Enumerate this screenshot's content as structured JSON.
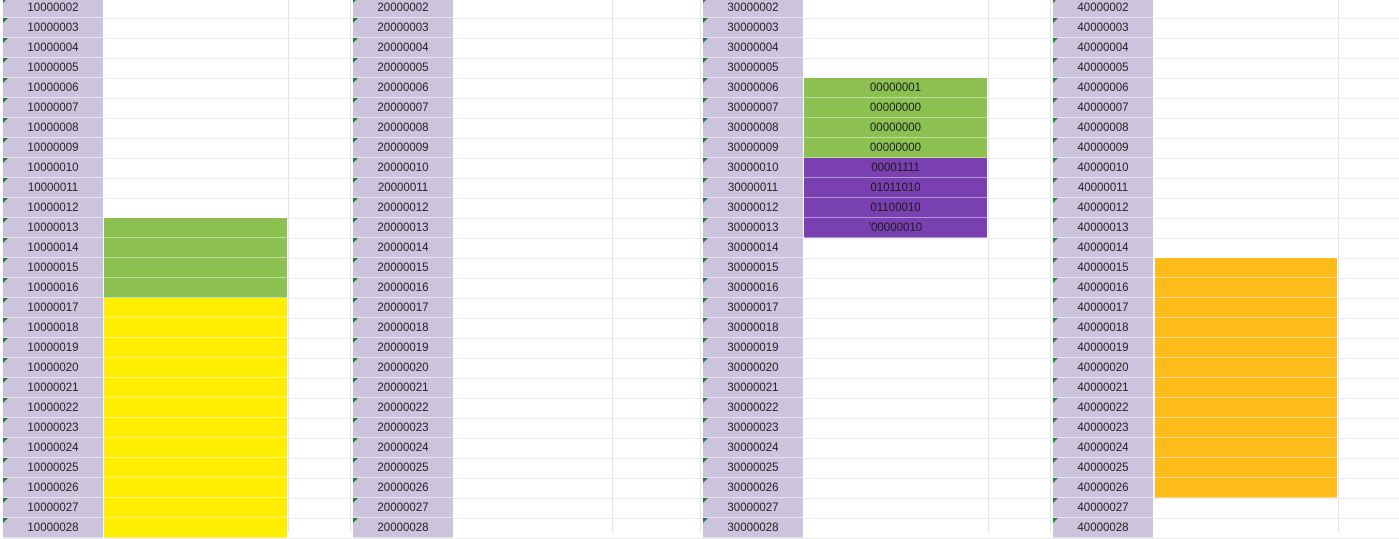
{
  "columns": [
    {
      "addresses": [
        "10000002",
        "10000003",
        "10000004",
        "10000005",
        "10000006",
        "10000007",
        "10000008",
        "10000009",
        "10000010",
        "10000011",
        "10000012",
        "10000013",
        "10000014",
        "10000015",
        "10000016",
        "10000017",
        "10000018",
        "10000019",
        "10000020",
        "10000021",
        "10000022",
        "10000023",
        "10000024",
        "10000025",
        "10000026",
        "10000027",
        "10000028"
      ],
      "blocks": [
        {
          "color": "#8cc152",
          "rows": [
            "",
            "",
            "",
            ""
          ]
        },
        {
          "color": "#ffee00",
          "rows": [
            "",
            "",
            "",
            "",
            "",
            "",
            "",
            "",
            "",
            "",
            "",
            ""
          ]
        }
      ]
    },
    {
      "addresses": [
        "20000002",
        "20000003",
        "20000004",
        "20000005",
        "20000006",
        "20000007",
        "20000008",
        "20000009",
        "20000010",
        "20000011",
        "20000012",
        "20000013",
        "20000014",
        "20000015",
        "20000016",
        "20000017",
        "20000018",
        "20000019",
        "20000020",
        "20000021",
        "20000022",
        "20000023",
        "20000024",
        "20000025",
        "20000026",
        "20000027",
        "20000028"
      ],
      "blocks": []
    },
    {
      "addresses": [
        "30000002",
        "30000003",
        "30000004",
        "30000005",
        "30000006",
        "30000007",
        "30000008",
        "30000009",
        "30000010",
        "30000011",
        "30000012",
        "30000013",
        "30000014",
        "30000015",
        "30000016",
        "30000017",
        "30000018",
        "30000019",
        "30000020",
        "30000021",
        "30000022",
        "30000023",
        "30000024",
        "30000025",
        "30000026",
        "30000027",
        "30000028"
      ],
      "blocks": [
        {
          "color": "#8cc152",
          "rows": [
            "00000001",
            "00000000",
            "00000000",
            "00000000"
          ]
        },
        {
          "color": "#7a3fb0",
          "rows": [
            "00001111",
            "01011010",
            "01100010",
            "'00000010"
          ]
        }
      ]
    },
    {
      "addresses": [
        "40000002",
        "40000003",
        "40000004",
        "40000005",
        "40000006",
        "40000007",
        "40000008",
        "40000009",
        "40000010",
        "40000011",
        "40000012",
        "40000013",
        "40000014",
        "40000015",
        "40000016",
        "40000017",
        "40000018",
        "40000019",
        "40000020",
        "40000021",
        "40000022",
        "40000023",
        "40000024",
        "40000025",
        "40000026",
        "40000027",
        "40000028"
      ],
      "blocks": [
        {
          "color": "#ffbb1a",
          "rows": [
            "",
            "",
            "",
            "",
            "",
            "",
            "",
            "",
            "",
            "",
            "",
            ""
          ]
        }
      ]
    }
  ],
  "active_cell": {
    "column": 3,
    "value": "'00000010"
  }
}
